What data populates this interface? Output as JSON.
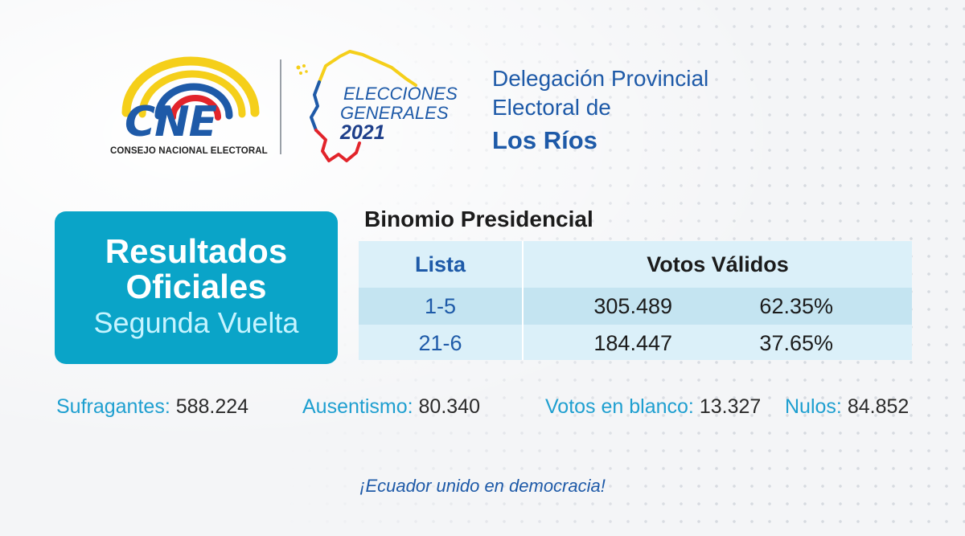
{
  "header": {
    "cne_logo": {
      "letters": "CNE",
      "tagline": "CONSEJO NACIONAL ELECTORAL"
    },
    "elecciones_logo": {
      "line1": "ELECCIONES",
      "line2": "GENERALES",
      "year": "2021"
    },
    "delegacion": {
      "line1": "Delegación Provincial",
      "line2": "Electoral de",
      "province": "Los Ríos"
    }
  },
  "badge": {
    "line1": "Resultados",
    "line2": "Oficiales",
    "line3": "Segunda Vuelta"
  },
  "table": {
    "title": "Binomio Presidencial",
    "col_lista": "Lista",
    "col_votos": "Votos Válidos",
    "rows": [
      {
        "lista": "1-5",
        "votos": "305.489",
        "porcentaje": "62.35%"
      },
      {
        "lista": "21-6",
        "votos": "184.447",
        "porcentaje": "37.65%"
      }
    ]
  },
  "stats": {
    "sufragantes": {
      "label": "Sufragantes:",
      "value": "588.224"
    },
    "ausentismo": {
      "label": "Ausentismo:",
      "value": "80.340"
    },
    "blanco": {
      "label": "Votos en blanco:",
      "value": "13.327"
    },
    "nulos": {
      "label": "Nulos:",
      "value": "84.852"
    }
  },
  "slogan": "¡Ecuador unido en democracia!",
  "colors": {
    "brand_blue": "#1e5aa8",
    "accent_cyan": "#0aa4c8",
    "flag_yellow": "#f5cf1a",
    "flag_red": "#e2242b",
    "stat_label": "#1e9fd0"
  }
}
